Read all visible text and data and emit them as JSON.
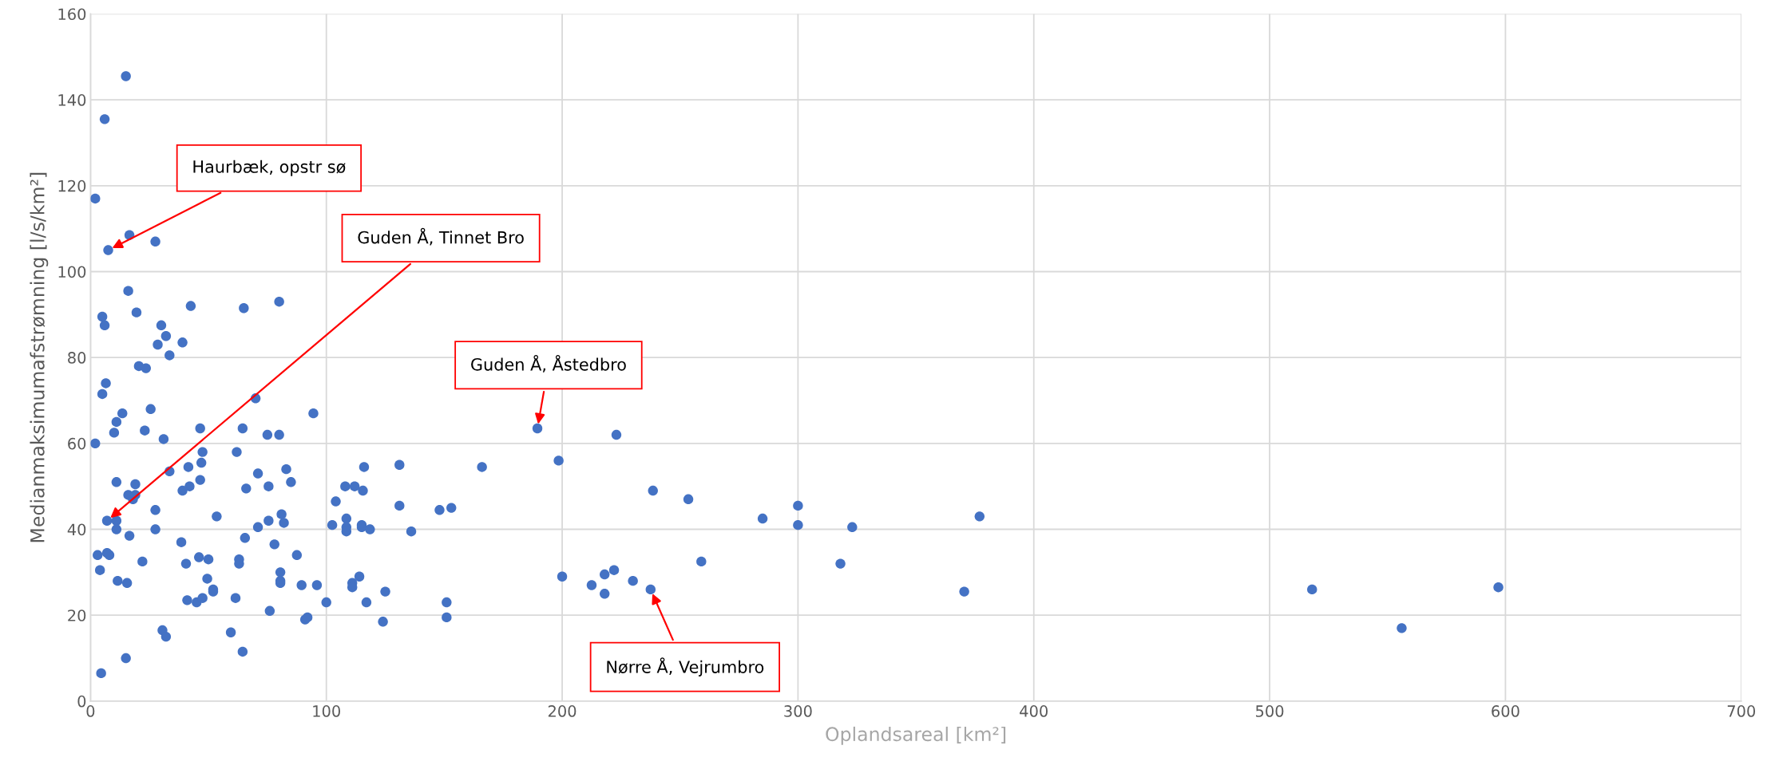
{
  "chart_data": {
    "type": "scatter",
    "xlabel": "Oplandsareal [km²]",
    "ylabel": "Medianmaksimumafstrømning [l/s/km²]",
    "xlim": [
      0,
      700
    ],
    "xticks": [
      0,
      100,
      200,
      300,
      400,
      500,
      600,
      700
    ],
    "ylim": [
      0,
      160
    ],
    "yticks": [
      0,
      20,
      40,
      60,
      80,
      100,
      120,
      140,
      160
    ],
    "grid": true,
    "marker": "circle",
    "series": [
      {
        "color": "#4472c4",
        "x": [
          15,
          6,
          2,
          7.5,
          16.5,
          27.5,
          5,
          6,
          16,
          19.5,
          6.5,
          5,
          20.5,
          23.5,
          10,
          11,
          13.5,
          25.5,
          2,
          23,
          11,
          19,
          16,
          18,
          19,
          16.5,
          7,
          11,
          11,
          3,
          7,
          8,
          4,
          11.5,
          15.5,
          22,
          27.5,
          27.5,
          15,
          4.5,
          28.5,
          30,
          32,
          33.5,
          39,
          42.5,
          31,
          33.5,
          41.5,
          42,
          46.5,
          47,
          47.5,
          46.5,
          39,
          38.5,
          40.5,
          46,
          50,
          41,
          45,
          47.5,
          49.5,
          52,
          52,
          53.5,
          30.5,
          32,
          59.5,
          61.5,
          62,
          63,
          63,
          64.5,
          65,
          64.5,
          66,
          65.5,
          70,
          71,
          71,
          75,
          75.5,
          75.5,
          76,
          78,
          80,
          80,
          81,
          82,
          83,
          85,
          80.5,
          80.5,
          80.5,
          87.5,
          89.5,
          91,
          92,
          94.5,
          96,
          100,
          102.5,
          104,
          108,
          108.5,
          108.5,
          108.5,
          111,
          111,
          112,
          114,
          115,
          115,
          115.5,
          116,
          117,
          118.5,
          124,
          125,
          131,
          131,
          136,
          148,
          151,
          151,
          153,
          166,
          189.5,
          198.5,
          200,
          212.5,
          218,
          218,
          222,
          223,
          230,
          237.5,
          238.5,
          253.5,
          259,
          285,
          300,
          300,
          318,
          323,
          370.5,
          377,
          518,
          556,
          597
        ],
        "values": [
          145.5,
          135.5,
          117,
          105,
          108.5,
          107,
          89.5,
          87.5,
          95.5,
          90.5,
          74,
          71.5,
          78,
          77.5,
          62.5,
          65,
          67,
          68,
          60,
          63,
          51,
          50.5,
          48,
          47,
          48,
          38.5,
          42,
          42,
          40,
          34,
          34.5,
          34,
          30.5,
          28,
          27.5,
          32.5,
          40,
          44.5,
          10,
          6.5,
          83,
          87.5,
          85,
          80.5,
          83.5,
          92,
          61,
          53.5,
          54.5,
          50,
          63.5,
          55.5,
          58,
          51.5,
          49,
          37,
          32,
          33.5,
          33,
          23.5,
          23,
          24,
          28.5,
          26,
          25.5,
          43,
          16.5,
          15,
          16,
          24,
          58,
          33,
          32,
          11.5,
          91.5,
          63.5,
          49.5,
          38,
          70.5,
          53,
          40.5,
          62,
          50,
          42,
          21,
          36.5,
          93,
          62,
          43.5,
          41.5,
          54,
          51,
          30,
          28,
          27.5,
          34,
          27,
          19,
          19.5,
          67,
          27,
          23,
          41,
          46.5,
          50,
          42.5,
          40.5,
          39.5,
          27.5,
          26.5,
          50,
          29,
          41,
          40.5,
          49,
          54.5,
          23,
          40,
          18.5,
          25.5,
          55,
          45.5,
          39.5,
          44.5,
          23,
          19.5,
          45,
          54.5,
          63.5,
          56,
          29,
          27,
          29.5,
          25,
          30.5,
          62,
          28,
          26,
          49,
          47,
          32.5,
          42.5,
          45.5,
          41,
          32,
          40.5,
          25.5,
          43,
          26,
          17,
          26.5
        ]
      }
    ],
    "annotations": [
      {
        "text": "Haurbæk, opstr sø",
        "x": 7.5,
        "y": 105
      },
      {
        "text": "Guden Å, Tinnet Bro",
        "x": 7,
        "y": 42
      },
      {
        "text": "Guden Å, Åstedbro",
        "x": 189.5,
        "y": 63.5
      },
      {
        "text": "Nørre Å, Vejrumbro",
        "x": 237.5,
        "y": 26
      }
    ]
  }
}
